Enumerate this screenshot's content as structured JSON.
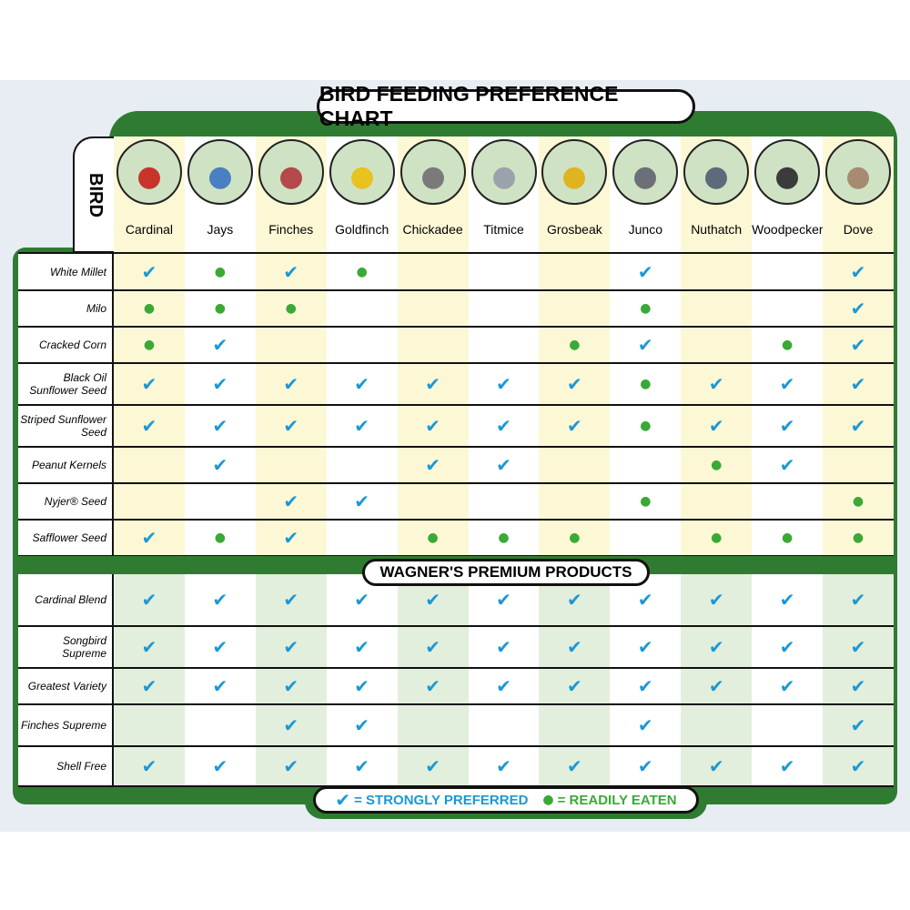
{
  "title": "BIRD FEEDING PREFERENCE CHART",
  "bird_header": "BIRD",
  "birds": [
    "Cardinal",
    "Jays",
    "Finches",
    "Goldfinch",
    "Chickadee",
    "Titmice",
    "Grosbeak",
    "Junco",
    "Nuthatch",
    "Woodpecker",
    "Dove"
  ],
  "seeds": {
    "rows": [
      {
        "label": "White Millet",
        "cells": [
          "✔",
          "●",
          "✔",
          "●",
          null,
          null,
          null,
          "✔",
          null,
          null,
          "✔"
        ]
      },
      {
        "label": "Milo",
        "cells": [
          "●",
          "●",
          "●",
          null,
          null,
          null,
          null,
          "●",
          null,
          null,
          "✔"
        ]
      },
      {
        "label": "Cracked Corn",
        "cells": [
          "●",
          "✔",
          null,
          null,
          null,
          null,
          "●",
          "✔",
          null,
          "●",
          "✔"
        ]
      },
      {
        "label": "Black Oil Sunflower Seed",
        "cells": [
          "✔",
          "✔",
          "✔",
          "✔",
          "✔",
          "✔",
          "✔",
          "●",
          "✔",
          "✔",
          "✔"
        ]
      },
      {
        "label": "Striped Sunflower Seed",
        "cells": [
          "✔",
          "✔",
          "✔",
          "✔",
          "✔",
          "✔",
          "✔",
          "●",
          "✔",
          "✔",
          "✔"
        ]
      },
      {
        "label": "Peanut Kernels",
        "cells": [
          null,
          "✔",
          null,
          null,
          "✔",
          "✔",
          null,
          null,
          "●",
          "✔",
          null
        ]
      },
      {
        "label": "Nyjer® Seed",
        "cells": [
          null,
          null,
          "✔",
          "✔",
          null,
          null,
          null,
          "●",
          null,
          null,
          "●"
        ]
      },
      {
        "label": "Safflower Seed",
        "cells": [
          "✔",
          "●",
          "✔",
          null,
          "●",
          "●",
          "●",
          null,
          "●",
          "●",
          "●"
        ]
      }
    ]
  },
  "products": {
    "title": "WAGNER'S PREMIUM PRODUCTS",
    "rows": [
      {
        "label": "Cardinal Blend",
        "cells": [
          "✔",
          "✔",
          "✔",
          "✔",
          "✔",
          "✔",
          "✔",
          "✔",
          "✔",
          "✔",
          "✔"
        ]
      },
      {
        "label": "Songbird Supreme",
        "cells": [
          "✔",
          "✔",
          "✔",
          "✔",
          "✔",
          "✔",
          "✔",
          "✔",
          "✔",
          "✔",
          "✔"
        ]
      },
      {
        "label": "Greatest Variety",
        "cells": [
          "✔",
          "✔",
          "✔",
          "✔",
          "✔",
          "✔",
          "✔",
          "✔",
          "✔",
          "✔",
          "✔"
        ]
      },
      {
        "label": "Finches Supreme",
        "cells": [
          null,
          null,
          "✔",
          "✔",
          null,
          null,
          null,
          "✔",
          null,
          null,
          "✔"
        ]
      },
      {
        "label": "Shell Free",
        "cells": [
          "✔",
          "✔",
          "✔",
          "✔",
          "✔",
          "✔",
          "✔",
          "✔",
          "✔",
          "✔",
          "✔"
        ]
      }
    ]
  },
  "legend": {
    "strong_symbol": "✔",
    "strong_label": "= STRONGLY PREFERRED",
    "readily_symbol": "●",
    "readily_label": "= READILY EATEN"
  }
}
